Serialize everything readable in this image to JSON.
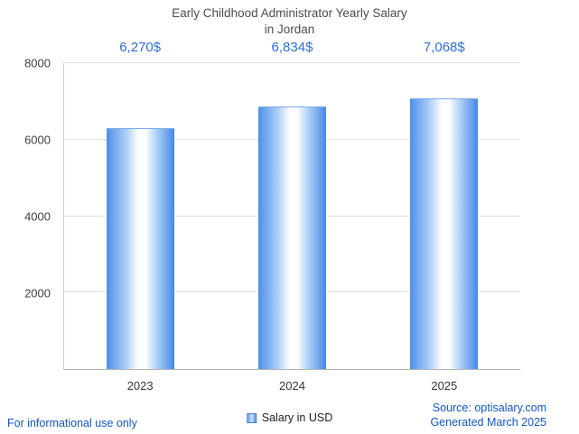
{
  "chart_data": {
    "type": "bar",
    "title_line1": "Early Childhood Administrator Yearly Salary",
    "title_line2": "in Jordan",
    "categories": [
      "2023",
      "2024",
      "2025"
    ],
    "values": [
      6270,
      6834,
      7068
    ],
    "value_labels": [
      "6,270$",
      "6,834$",
      "7,068$"
    ],
    "ylim": [
      0,
      8000
    ],
    "yticks": [
      2000,
      4000,
      6000,
      8000
    ],
    "grid": true,
    "legend_position": "bottom",
    "legend_label": "Salary in USD"
  },
  "footer": {
    "disclaimer": "For informational use only",
    "source_line1": "Source: optisalary.com",
    "source_line2": "Generated March 2025"
  },
  "colors": {
    "bar_edge": "#4e8fe8",
    "bar_center": "#ffffff",
    "value_label": "#2e6fd9",
    "link_blue": "#1155cc",
    "title_gray": "#4c4c4c"
  }
}
